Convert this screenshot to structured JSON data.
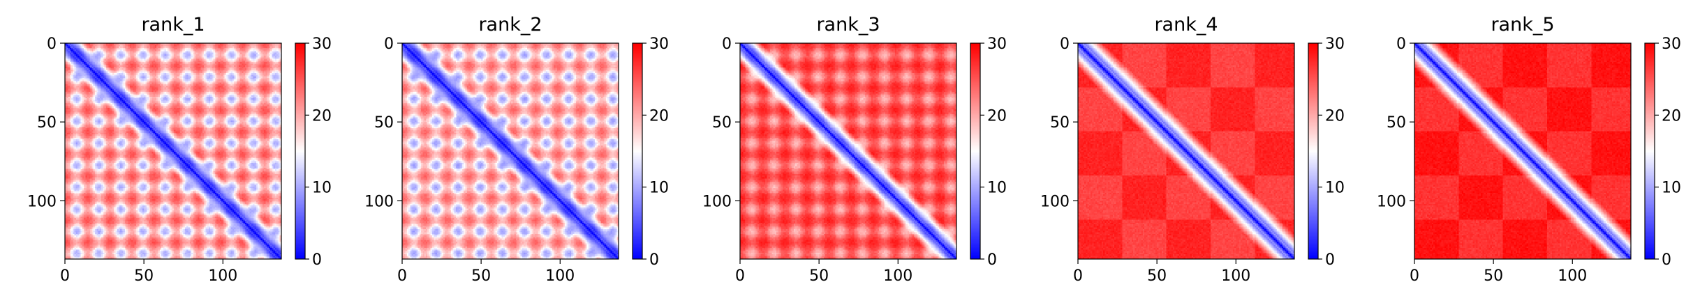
{
  "figure": {
    "panel_count": 5
  },
  "chart_data": [
    {
      "type": "heatmap",
      "title": "rank_1",
      "matrix_size": 137,
      "xlim": [
        0,
        137
      ],
      "ylim": [
        137,
        0
      ],
      "xticks": [
        0,
        50,
        100
      ],
      "yticks": [
        0,
        50,
        100
      ],
      "colorbar": {
        "range": [
          0,
          30
        ],
        "ticks": [
          0,
          10,
          20,
          30
        ],
        "colormap": "bwr"
      },
      "diagonal_width": 3,
      "background_level": 20,
      "offdiag_pattern": {
        "period": 28,
        "stripe_amplitude": 5,
        "contrast": 0.9
      },
      "block_structure": {
        "block_size": 0,
        "strength": 0
      }
    },
    {
      "type": "heatmap",
      "title": "rank_2",
      "matrix_size": 137,
      "xlim": [
        0,
        137
      ],
      "ylim": [
        137,
        0
      ],
      "xticks": [
        0,
        50,
        100
      ],
      "yticks": [
        0,
        50,
        100
      ],
      "colorbar": {
        "range": [
          0,
          30
        ],
        "ticks": [
          0,
          10,
          20,
          30
        ],
        "colormap": "bwr"
      },
      "diagonal_width": 3,
      "background_level": 19,
      "offdiag_pattern": {
        "period": 28,
        "stripe_amplitude": 5,
        "contrast": 0.85
      },
      "block_structure": {
        "block_size": 0,
        "strength": 0
      }
    },
    {
      "type": "heatmap",
      "title": "rank_3",
      "matrix_size": 137,
      "xlim": [
        0,
        137
      ],
      "ylim": [
        137,
        0
      ],
      "xticks": [
        0,
        50,
        100
      ],
      "yticks": [
        0,
        50,
        100
      ],
      "colorbar": {
        "range": [
          0,
          30
        ],
        "ticks": [
          0,
          10,
          20,
          30
        ],
        "colormap": "bwr"
      },
      "diagonal_width": 3,
      "background_level": 25,
      "offdiag_pattern": {
        "period": 28,
        "stripe_amplitude": 3,
        "contrast": 0.55
      },
      "block_structure": {
        "block_size": 0,
        "strength": 0
      }
    },
    {
      "type": "heatmap",
      "title": "rank_4",
      "matrix_size": 137,
      "xlim": [
        0,
        137
      ],
      "ylim": [
        137,
        0
      ],
      "xticks": [
        0,
        50,
        100
      ],
      "yticks": [
        0,
        50,
        100
      ],
      "colorbar": {
        "range": [
          0,
          30
        ],
        "ticks": [
          0,
          10,
          20,
          30
        ],
        "colormap": "bwr"
      },
      "diagonal_width": 3.5,
      "background_level": 28,
      "offdiag_pattern": {
        "period": 28,
        "stripe_amplitude": 0,
        "contrast": 0
      },
      "block_structure": {
        "block_size": 28,
        "strength": 2
      }
    },
    {
      "type": "heatmap",
      "title": "rank_5",
      "matrix_size": 137,
      "xlim": [
        0,
        137
      ],
      "ylim": [
        137,
        0
      ],
      "xticks": [
        0,
        50,
        100
      ],
      "yticks": [
        0,
        50,
        100
      ],
      "colorbar": {
        "range": [
          0,
          30
        ],
        "ticks": [
          0,
          10,
          20,
          30
        ],
        "colormap": "bwr"
      },
      "diagonal_width": 3.5,
      "background_level": 29,
      "offdiag_pattern": {
        "period": 28,
        "stripe_amplitude": 0,
        "contrast": 0
      },
      "block_structure": {
        "block_size": 28,
        "strength": 2
      }
    }
  ]
}
